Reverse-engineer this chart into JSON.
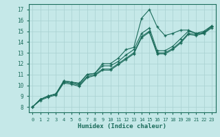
{
  "title": "",
  "xlabel": "Humidex (Indice chaleur)",
  "ylabel": "",
  "xlim": [
    -0.5,
    23.5
  ],
  "ylim": [
    7.5,
    17.5
  ],
  "xticks": [
    0,
    1,
    2,
    3,
    4,
    5,
    6,
    7,
    8,
    9,
    10,
    11,
    12,
    13,
    14,
    15,
    16,
    17,
    18,
    19,
    20,
    21,
    22,
    23
  ],
  "yticks": [
    8,
    9,
    10,
    11,
    12,
    13,
    14,
    15,
    16,
    17
  ],
  "background_color": "#c5e8e8",
  "grid_color": "#a8d0d0",
  "line_color": "#1a6b5a",
  "lines": [
    [
      8.0,
      8.7,
      9.0,
      9.2,
      10.4,
      10.3,
      10.2,
      11.0,
      11.1,
      12.0,
      12.0,
      12.5,
      13.3,
      13.5,
      16.2,
      17.0,
      15.4,
      14.6,
      14.8,
      15.1,
      15.1,
      14.8,
      14.8,
      15.5
    ],
    [
      8.0,
      8.7,
      9.0,
      9.2,
      10.4,
      10.3,
      10.1,
      11.0,
      11.1,
      11.8,
      11.8,
      12.2,
      12.8,
      13.3,
      14.8,
      15.3,
      13.2,
      13.2,
      13.6,
      14.3,
      15.0,
      14.8,
      15.0,
      15.5
    ],
    [
      8.0,
      8.7,
      9.0,
      9.2,
      10.3,
      10.2,
      10.0,
      10.8,
      11.0,
      11.5,
      11.5,
      12.0,
      12.5,
      13.0,
      14.5,
      15.0,
      13.0,
      13.0,
      13.4,
      14.0,
      14.8,
      14.7,
      14.9,
      15.4
    ],
    [
      8.0,
      8.6,
      8.9,
      9.1,
      10.2,
      10.1,
      9.9,
      10.7,
      10.9,
      11.4,
      11.4,
      11.9,
      12.4,
      12.9,
      14.4,
      14.9,
      12.9,
      12.9,
      13.3,
      13.9,
      14.7,
      14.6,
      14.8,
      15.3
    ]
  ]
}
